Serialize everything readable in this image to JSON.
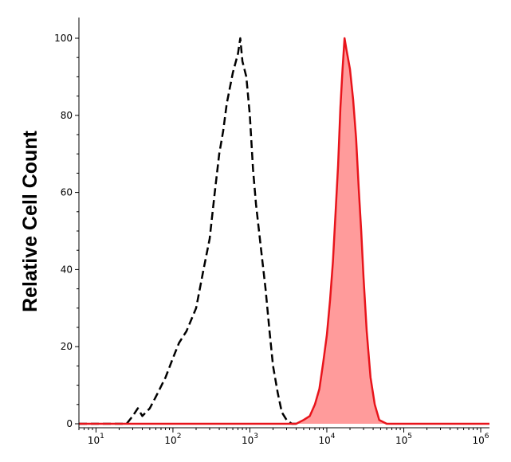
{
  "chart_data": {
    "type": "area",
    "ylabel": "Relative Cell Count",
    "xlabel": "",
    "xscale": "log",
    "xlim": [
      6,
      1300000
    ],
    "ylim": [
      0,
      100
    ],
    "yticks": [
      {
        "value": 0,
        "label": "0"
      },
      {
        "value": 20,
        "label": "20"
      },
      {
        "value": 40,
        "label": "40"
      },
      {
        "value": 60,
        "label": "60"
      },
      {
        "value": 80,
        "label": "80"
      },
      {
        "value": 100,
        "label": "100"
      }
    ],
    "xticks": [
      {
        "value": 10,
        "base": "10",
        "exp": "1"
      },
      {
        "value": 100,
        "base": "10",
        "exp": "2"
      },
      {
        "value": 1000,
        "base": "10",
        "exp": "3"
      },
      {
        "value": 10000,
        "base": "10",
        "exp": "4"
      },
      {
        "value": 100000,
        "base": "10",
        "exp": "5"
      },
      {
        "value": 1000000,
        "base": "10",
        "exp": "6"
      }
    ],
    "series": [
      {
        "style": "dashed-outline",
        "color": "#000000",
        "x": [
          6,
          25,
          30,
          35,
          40,
          50,
          60,
          80,
          100,
          120,
          150,
          200,
          250,
          300,
          350,
          400,
          450,
          500,
          600,
          700,
          750,
          800,
          900,
          1000,
          1100,
          1200,
          1400,
          1600,
          1800,
          2000,
          2300,
          2600,
          3000,
          3500,
          4000
        ],
        "y": [
          0,
          0,
          2,
          4,
          2,
          4,
          7,
          12,
          17,
          21,
          24,
          30,
          40,
          48,
          60,
          70,
          76,
          83,
          91,
          96,
          100,
          94,
          90,
          80,
          66,
          57,
          45,
          35,
          24,
          15,
          8,
          3,
          1,
          0,
          0
        ]
      },
      {
        "style": "filled",
        "color": "#e8141b",
        "fill": "#ff9b9b",
        "x": [
          6,
          4000,
          5000,
          6000,
          7000,
          8000,
          9000,
          10000,
          11000,
          12000,
          13000,
          14000,
          15000,
          16000,
          17000,
          18000,
          20000,
          22000,
          24000,
          26000,
          28000,
          30000,
          33000,
          37000,
          42000,
          48000,
          60000,
          100000,
          1300000
        ],
        "y": [
          0,
          0,
          1,
          2,
          5,
          9,
          16,
          23,
          32,
          42,
          55,
          67,
          82,
          92,
          100,
          97,
          92,
          84,
          74,
          61,
          50,
          38,
          24,
          12,
          5,
          1,
          0,
          0,
          0
        ]
      }
    ]
  }
}
